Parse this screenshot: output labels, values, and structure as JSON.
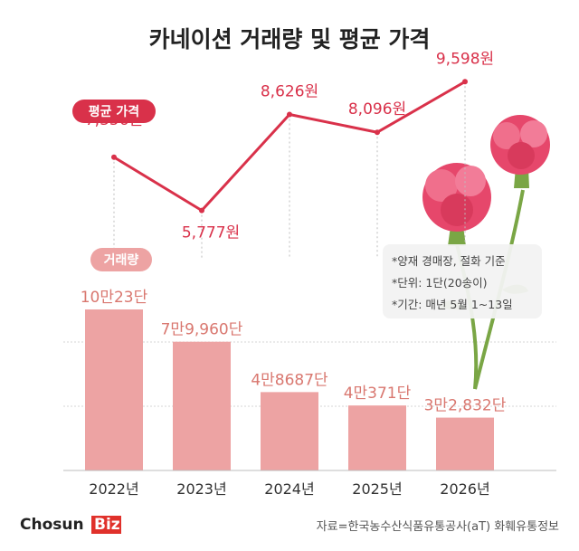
{
  "chart_data": {
    "type": "bar",
    "title": "카네이션 거래량 및 평균 가격",
    "categories": [
      "2022년",
      "2023년",
      "2024년",
      "2025년",
      "2026년"
    ],
    "series": [
      {
        "name": "거래량",
        "kind": "bar",
        "values": [
          100023,
          79960,
          48687,
          40371,
          32832
        ],
        "labels": [
          "10만23단",
          "7만9,960단",
          "4만8687단",
          "4만371단",
          "3만2,832단"
        ],
        "color": "#eda3a3"
      },
      {
        "name": "평균 가격",
        "kind": "line",
        "values": [
          7356,
          5777,
          8626,
          8096,
          9598
        ],
        "labels": [
          "7,356원",
          "5,777원",
          "8,626원",
          "8,096원",
          "9,598원"
        ],
        "color": "#d9314a"
      }
    ],
    "grid": true
  },
  "notes": [
    "*양재 경매장, 절화 기준",
    "*단위: 1단(20송이)",
    "*기간: 매년 5월 1~13일"
  ],
  "brand": {
    "chosun": "Chosun",
    "biz": "Biz"
  },
  "source": "자료=한국농수산식품유통공사(aT) 화훼유통정보",
  "colors": {
    "price_line": "#d9314a",
    "bar": "#eda3a3",
    "volume_text": "#d9776f"
  }
}
